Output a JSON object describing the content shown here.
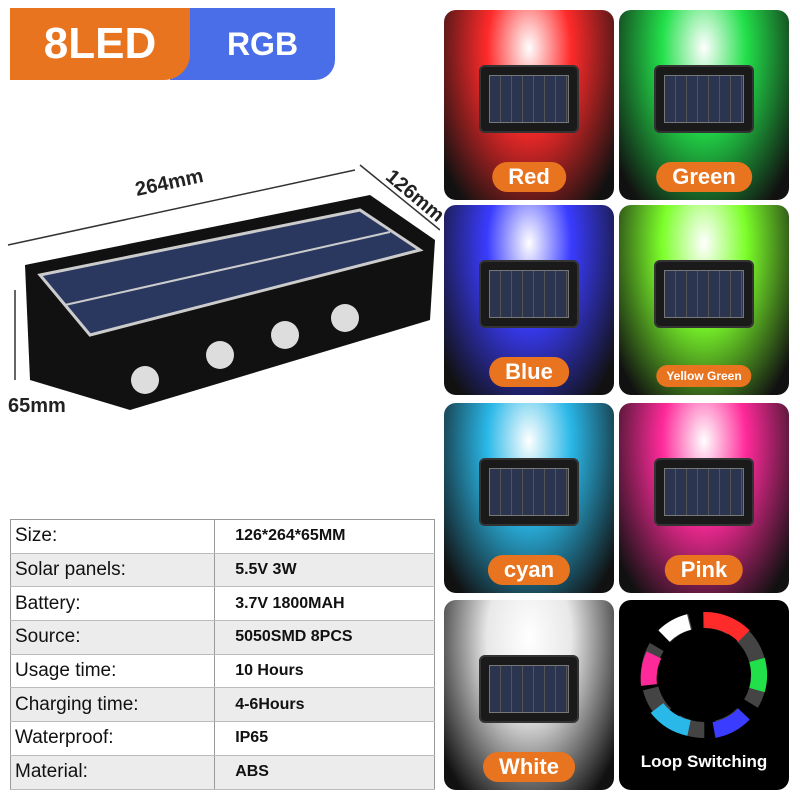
{
  "badge": {
    "count": "8LED",
    "mode": "RGB"
  },
  "dimensions": {
    "length": "264mm",
    "width": "126mm",
    "height": "65mm"
  },
  "specs": [
    {
      "label": "Size:",
      "value": "126*264*65MM"
    },
    {
      "label": "Solar panels:",
      "value": "5.5V 3W"
    },
    {
      "label": "Battery:",
      "value": "3.7V 1800MAH"
    },
    {
      "label": "Source:",
      "value": "5050SMD 8PCS"
    },
    {
      "label": "Usage time:",
      "value": "10 Hours"
    },
    {
      "label": "Charging time:",
      "value": "4-6Hours"
    },
    {
      "label": "Waterproof:",
      "value": "IP65"
    },
    {
      "label": "Material:",
      "value": "ABS"
    }
  ],
  "colors": [
    {
      "label": "Red",
      "hex": "#ff2a2a"
    },
    {
      "label": "Green",
      "hex": "#22e04a"
    },
    {
      "label": "Blue",
      "hex": "#3a3cff"
    },
    {
      "label": "Yellow Green",
      "hex": "#7cff2a"
    },
    {
      "label": "cyan",
      "hex": "#2ab8e8"
    },
    {
      "label": "Pink",
      "hex": "#ff2a9a"
    },
    {
      "label": "White",
      "hex": "#e8e8e8"
    }
  ],
  "loop": {
    "label": "Loop Switching"
  }
}
